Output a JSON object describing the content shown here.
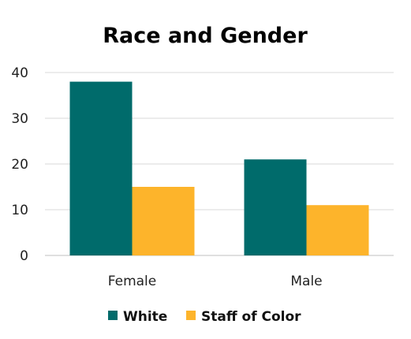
{
  "chart_data": {
    "type": "bar",
    "title": "Race and Gender",
    "categories": [
      "Female",
      "Male"
    ],
    "series": [
      {
        "name": "White",
        "values": [
          38,
          21
        ],
        "color": "#006B6B"
      },
      {
        "name": "Staff of Color",
        "values": [
          15,
          11
        ],
        "color": "#FDB42B"
      }
    ],
    "ylim": [
      0,
      40
    ],
    "yticks": [
      0,
      10,
      20,
      30,
      40
    ],
    "grid": true,
    "legend_position": "bottom"
  }
}
